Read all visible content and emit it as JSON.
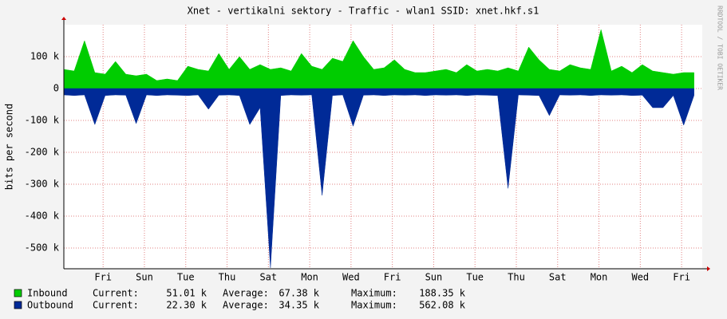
{
  "chart_data": {
    "type": "area",
    "title": "Xnet - vertikalni sektory - Traffic - wlan1 SSID: xnet.hkf.s1",
    "y_label": "bits per second",
    "watermark": "RRDTOOL / TOBI OETIKER",
    "x": [
      0,
      0.5,
      1,
      1.5,
      2,
      2.5,
      3,
      3.5,
      4,
      4.5,
      5,
      5.5,
      6,
      6.5,
      7,
      7.5,
      8,
      8.5,
      9,
      9.5,
      10,
      10.5,
      11,
      11.5,
      12,
      12.5,
      13,
      13.5,
      14,
      14.5,
      15,
      15.5,
      16,
      16.5,
      17,
      17.5,
      18,
      18.5,
      19,
      19.5,
      20,
      20.5,
      21,
      21.5,
      22,
      22.5,
      23,
      23.5,
      24,
      24.5,
      25,
      25.5,
      26,
      26.5,
      27,
      27.5,
      28,
      28.5,
      29,
      29.5,
      30,
      30.5
    ],
    "series": [
      {
        "name": "Inbound",
        "color": "#00cc00",
        "values": [
          60000,
          55000,
          150000,
          50000,
          45000,
          85000,
          45000,
          40000,
          45000,
          25000,
          30000,
          25000,
          70000,
          60000,
          55000,
          110000,
          60000,
          100000,
          60000,
          75000,
          60000,
          65000,
          55000,
          110000,
          70000,
          60000,
          95000,
          85000,
          150000,
          100000,
          60000,
          65000,
          90000,
          60000,
          50000,
          50000,
          55000,
          60000,
          50000,
          75000,
          55000,
          60000,
          55000,
          65000,
          55000,
          130000,
          90000,
          60000,
          55000,
          75000,
          65000,
          60000,
          185000,
          55000,
          70000,
          50000,
          75000,
          55000,
          50000,
          45000,
          50000,
          50000
        ],
        "stats": [
          {
            "label": "Current:",
            "value": "51.01 k"
          },
          {
            "label": "Average:",
            "value": "67.38 k"
          },
          {
            "label": "Maximum:",
            "value": "188.35 k"
          }
        ]
      },
      {
        "name": "Outbound",
        "color": "#002a97",
        "values": [
          -20000,
          -22000,
          -20000,
          -113000,
          -22000,
          -20000,
          -21000,
          -110000,
          -20000,
          -22000,
          -20000,
          -21000,
          -22000,
          -20000,
          -65000,
          -21000,
          -20000,
          -22000,
          -113000,
          -60000,
          -562000,
          -22000,
          -20000,
          -21000,
          -20000,
          -335000,
          -22000,
          -20000,
          -118000,
          -21000,
          -20000,
          -22000,
          -20000,
          -21000,
          -20000,
          -22000,
          -20000,
          -21000,
          -20000,
          -22000,
          -20000,
          -21000,
          -22000,
          -313000,
          -20000,
          -21000,
          -22000,
          -85000,
          -20000,
          -21000,
          -20000,
          -22000,
          -20000,
          -21000,
          -20000,
          -22000,
          -21000,
          -60000,
          -60000,
          -22000,
          -115000,
          -22000
        ],
        "stats": [
          {
            "label": "Current:",
            "value": "22.30 k"
          },
          {
            "label": "Average:",
            "value": "34.35 k"
          },
          {
            "label": "Maximum:",
            "value": "562.08 k"
          }
        ]
      }
    ],
    "xlim": [
      0,
      30.9
    ],
    "xticks": [
      {
        "value": 1.9,
        "label": "Fri"
      },
      {
        "value": 3.9,
        "label": "Sun"
      },
      {
        "value": 5.9,
        "label": "Tue"
      },
      {
        "value": 7.9,
        "label": "Thu"
      },
      {
        "value": 9.9,
        "label": "Sat"
      },
      {
        "value": 11.9,
        "label": "Mon"
      },
      {
        "value": 13.9,
        "label": "Wed"
      },
      {
        "value": 15.9,
        "label": "Fri"
      },
      {
        "value": 17.9,
        "label": "Sun"
      },
      {
        "value": 19.9,
        "label": "Tue"
      },
      {
        "value": 21.9,
        "label": "Thu"
      },
      {
        "value": 23.9,
        "label": "Sat"
      },
      {
        "value": 25.9,
        "label": "Mon"
      },
      {
        "value": 27.9,
        "label": "Wed"
      },
      {
        "value": 29.9,
        "label": "Fri"
      }
    ],
    "ylim": [
      -565000,
      200000
    ],
    "yticks": [
      {
        "value": 100000,
        "label": "100 k"
      },
      0,
      {
        "value": -100000,
        "label": "-100 k"
      },
      {
        "value": -200000,
        "label": "-200 k"
      },
      {
        "value": -300000,
        "label": "-300 k"
      },
      {
        "value": -400000,
        "label": "-400 k"
      },
      {
        "value": -500000,
        "label": "-500 k"
      }
    ],
    "grid": true
  }
}
